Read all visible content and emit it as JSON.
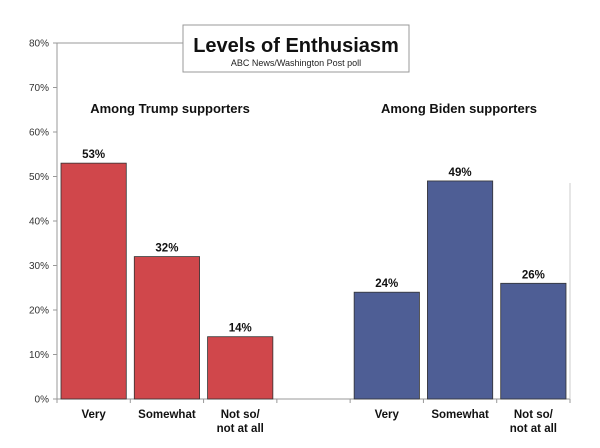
{
  "chart_data": {
    "type": "bar",
    "title": "Levels of Enthusiasm",
    "subtitle": "ABC News/Washington Post poll",
    "ylim": [
      0,
      80
    ],
    "yticks": [
      "0%",
      "10%",
      "20%",
      "30%",
      "40%",
      "50%",
      "60%",
      "70%",
      "80%"
    ],
    "grid": false,
    "groups": [
      {
        "name": "Among Trump supporters",
        "color": "#d0474b",
        "categories": [
          "Very",
          "Somewhat",
          "Not so/\nnot at all"
        ],
        "values": [
          53,
          32,
          14
        ],
        "labels": [
          "53%",
          "32%",
          "14%"
        ]
      },
      {
        "name": "Among Biden supporters",
        "color": "#4e5e95",
        "categories": [
          "Very",
          "Somewhat",
          "Not so/\nnot at all"
        ],
        "values": [
          24,
          49,
          26
        ],
        "labels": [
          "24%",
          "49%",
          "26%"
        ]
      }
    ]
  }
}
